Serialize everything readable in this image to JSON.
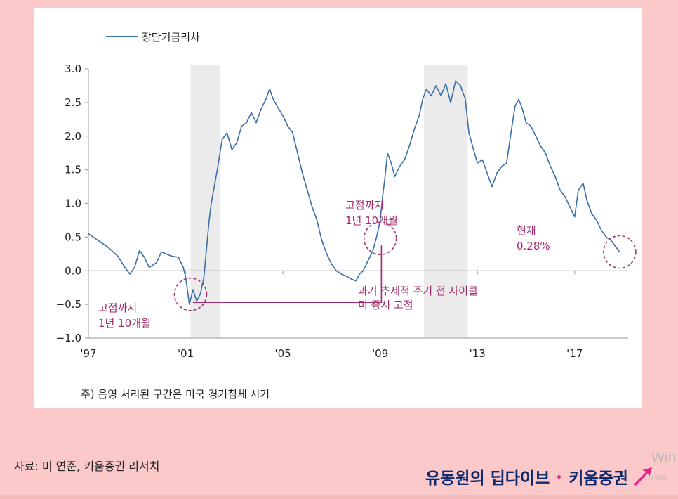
{
  "chart_data": {
    "type": "line",
    "legend": {
      "label": "장단기금리차",
      "placement": "top-left"
    },
    "y_ticks": [
      "3.0",
      "2.5",
      "2.0",
      "1.5",
      "1.0",
      "0.5",
      "0.0",
      "-0.5",
      "-1.0"
    ],
    "ylim": [
      -1.0,
      3.0
    ],
    "x_tick_labels": [
      "'97",
      "'01",
      "'05",
      "'09",
      "'13",
      "'17"
    ],
    "x_tick_years": [
      1997,
      2001,
      2005,
      2009,
      2013,
      2017
    ],
    "xlim": [
      1997.0,
      2019.2
    ],
    "recessions": [
      {
        "start": 2001.2,
        "end": 2002.4
      },
      {
        "start": 2010.8,
        "end": 2012.6
      }
    ],
    "series": [
      {
        "name": "장단기금리차",
        "color": "#3a6fa9",
        "points": [
          [
            1997.0,
            0.55
          ],
          [
            1997.4,
            0.45
          ],
          [
            1997.8,
            0.35
          ],
          [
            1998.2,
            0.22
          ],
          [
            1998.5,
            0.05
          ],
          [
            1998.7,
            -0.05
          ],
          [
            1998.9,
            0.05
          ],
          [
            1999.1,
            0.3
          ],
          [
            1999.3,
            0.2
          ],
          [
            1999.5,
            0.05
          ],
          [
            1999.8,
            0.12
          ],
          [
            2000.0,
            0.28
          ],
          [
            2000.4,
            0.22
          ],
          [
            2000.7,
            0.2
          ],
          [
            2000.9,
            0.05
          ],
          [
            2001.0,
            -0.1
          ],
          [
            2001.15,
            -0.5
          ],
          [
            2001.3,
            -0.28
          ],
          [
            2001.45,
            -0.45
          ],
          [
            2001.6,
            -0.35
          ],
          [
            2001.75,
            -0.1
          ],
          [
            2001.85,
            0.3
          ],
          [
            2001.95,
            0.7
          ],
          [
            2002.05,
            1.0
          ],
          [
            2002.15,
            1.2
          ],
          [
            2002.3,
            1.5
          ],
          [
            2002.5,
            1.95
          ],
          [
            2002.7,
            2.05
          ],
          [
            2002.9,
            1.8
          ],
          [
            2003.1,
            1.9
          ],
          [
            2003.3,
            2.15
          ],
          [
            2003.5,
            2.2
          ],
          [
            2003.7,
            2.35
          ],
          [
            2003.9,
            2.2
          ],
          [
            2004.1,
            2.4
          ],
          [
            2004.3,
            2.55
          ],
          [
            2004.45,
            2.7
          ],
          [
            2004.6,
            2.55
          ],
          [
            2004.8,
            2.42
          ],
          [
            2005.0,
            2.3
          ],
          [
            2005.2,
            2.15
          ],
          [
            2005.4,
            2.05
          ],
          [
            2005.6,
            1.75
          ],
          [
            2005.8,
            1.45
          ],
          [
            2006.0,
            1.2
          ],
          [
            2006.2,
            0.95
          ],
          [
            2006.4,
            0.75
          ],
          [
            2006.6,
            0.45
          ],
          [
            2006.8,
            0.25
          ],
          [
            2007.0,
            0.1
          ],
          [
            2007.2,
            0.0
          ],
          [
            2007.4,
            -0.05
          ],
          [
            2007.6,
            -0.08
          ],
          [
            2007.8,
            -0.12
          ],
          [
            2008.0,
            -0.15
          ],
          [
            2008.15,
            -0.05
          ],
          [
            2008.3,
            0.0
          ],
          [
            2008.5,
            0.15
          ],
          [
            2008.7,
            0.3
          ],
          [
            2008.85,
            0.5
          ],
          [
            2009.0,
            0.75
          ],
          [
            2009.1,
            1.1
          ],
          [
            2009.2,
            1.4
          ],
          [
            2009.3,
            1.75
          ],
          [
            2009.45,
            1.6
          ],
          [
            2009.6,
            1.4
          ],
          [
            2009.8,
            1.55
          ],
          [
            2010.0,
            1.65
          ],
          [
            2010.2,
            1.85
          ],
          [
            2010.4,
            2.1
          ],
          [
            2010.6,
            2.3
          ],
          [
            2010.75,
            2.55
          ],
          [
            2010.9,
            2.7
          ],
          [
            2011.1,
            2.6
          ],
          [
            2011.3,
            2.75
          ],
          [
            2011.5,
            2.6
          ],
          [
            2011.7,
            2.78
          ],
          [
            2011.9,
            2.5
          ],
          [
            2012.1,
            2.82
          ],
          [
            2012.3,
            2.75
          ],
          [
            2012.5,
            2.55
          ],
          [
            2012.65,
            2.05
          ],
          [
            2012.8,
            1.85
          ],
          [
            2013.0,
            1.6
          ],
          [
            2013.2,
            1.65
          ],
          [
            2013.4,
            1.45
          ],
          [
            2013.6,
            1.25
          ],
          [
            2013.8,
            1.45
          ],
          [
            2014.0,
            1.55
          ],
          [
            2014.2,
            1.6
          ],
          [
            2014.4,
            2.1
          ],
          [
            2014.55,
            2.45
          ],
          [
            2014.7,
            2.55
          ],
          [
            2014.85,
            2.4
          ],
          [
            2015.0,
            2.2
          ],
          [
            2015.2,
            2.15
          ],
          [
            2015.4,
            2.0
          ],
          [
            2015.6,
            1.85
          ],
          [
            2015.8,
            1.75
          ],
          [
            2016.0,
            1.55
          ],
          [
            2016.2,
            1.4
          ],
          [
            2016.4,
            1.2
          ],
          [
            2016.6,
            1.1
          ],
          [
            2016.8,
            0.95
          ],
          [
            2017.0,
            0.8
          ],
          [
            2017.15,
            1.2
          ],
          [
            2017.35,
            1.3
          ],
          [
            2017.5,
            1.05
          ],
          [
            2017.7,
            0.85
          ],
          [
            2017.9,
            0.75
          ],
          [
            2018.1,
            0.6
          ],
          [
            2018.3,
            0.5
          ],
          [
            2018.5,
            0.45
          ],
          [
            2018.7,
            0.35
          ],
          [
            2018.85,
            0.28
          ]
        ]
      }
    ],
    "annotations": [
      {
        "type": "circle",
        "x": 2001.2,
        "y": -0.35,
        "label_lines": [
          "고점까지",
          "1년 10개월"
        ]
      },
      {
        "type": "circle",
        "x": 2009.0,
        "y": 0.48,
        "label_lines": [
          "고점까지",
          "1년 10개월"
        ]
      },
      {
        "type": "circle",
        "x": 2018.85,
        "y": 0.28,
        "label_lines": [
          "현재",
          "0.28%"
        ]
      },
      {
        "type": "bracket",
        "from_x": 2001.3,
        "to_x": 2009.05,
        "y": -0.47,
        "label_lines": [
          "과거 추세적 주기 전 사이클",
          "미 증시 고점"
        ]
      }
    ],
    "colors": {
      "line": "#3a6fa9",
      "recession": "#ebebeb",
      "annotation": "#a32a6b",
      "axis": "#9a9a9a"
    }
  },
  "note": "주) 음영 처리된 구간은 미국 경기침체 시기",
  "source": "자료: 미 연준, 키움증권 리서치",
  "brand": {
    "show": "유동원의 딥다이브",
    "company": "키움증권"
  },
  "watermark": {
    "line1": "Win",
    "line2": "(설정"
  }
}
